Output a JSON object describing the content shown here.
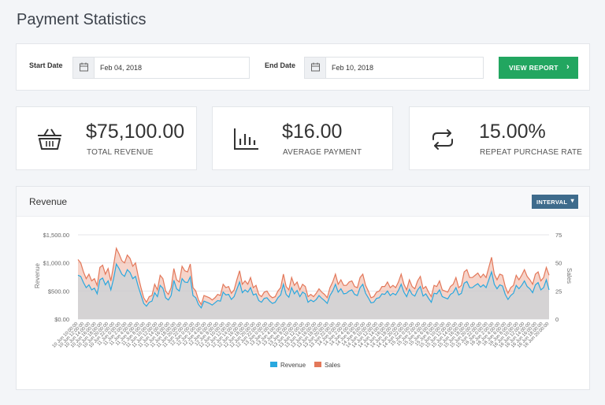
{
  "page": {
    "title": "Payment Statistics"
  },
  "filter": {
    "start_label": "Start Date",
    "start_value": "Feb 04, 2018",
    "end_label": "End Date",
    "end_value": "Feb 10, 2018",
    "button_label": "VIEW REPORT",
    "button_icon": "chevron-right-icon",
    "button_color": "#22a660"
  },
  "stats": [
    {
      "value": "$75,100.00",
      "label": "TOTAL REVENUE",
      "icon": "basket-icon"
    },
    {
      "value": "$16.00",
      "label": "AVERAGE PAYMENT",
      "icon": "bar-chart-icon"
    },
    {
      "value": "15.00%",
      "label": "REPEAT PURCHASE RATE",
      "icon": "repeat-icon"
    }
  ],
  "revenue_panel": {
    "title": "Revenue",
    "interval_label": "INTERVAL",
    "interval_color": "#3e6b8c"
  },
  "chart_data": {
    "type": "area",
    "ylabel": "Revenue",
    "y2label": "Sales",
    "y_ticks": [
      "$0.00",
      "$500.00",
      "$1,000.00",
      "$1,500.00"
    ],
    "y2_ticks": [
      "0",
      "25",
      "50",
      "75"
    ],
    "ylim": [
      0,
      1500
    ],
    "y2lim": [
      0,
      75
    ],
    "grid": true,
    "legend": "bottom",
    "x_ticks": [
      "10 Jun 10:00:00",
      "10 Jun 12:00:00",
      "10 Jun 14:00:00",
      "10 Jun 16:00:00",
      "10 Jun 18:00:00",
      "10 Jun 20:00:00",
      "10 Jun 22:00:00",
      "11 Jun 0:00:00",
      "11 Jun 2:00:00",
      "11 Jun 4:00:00",
      "11 Jun 6:00:00",
      "11 Jun 8:00:00",
      "11 Jun 10:00:00",
      "11 Jun 12:00:00",
      "11 Jun 14:00:00",
      "11 Jun 16:00:00",
      "11 Jun 18:00:00",
      "11 Jun 20:00:00",
      "11 Jun 22:00:00",
      "12 Jun 0:00:00",
      "12 Jun 2:00:00",
      "12 Jun 4:00:00",
      "12 Jun 6:00:00",
      "12 Jun 8:00:00",
      "12 Jun 10:00:00",
      "12 Jun 12:00:00",
      "12 Jun 14:00:00",
      "12 Jun 16:00:00",
      "12 Jun 18:00:00",
      "12 Jun 20:00:00",
      "12 Jun 22:00:00",
      "13 Jun 0:00:00",
      "13 Jun 2:00:00",
      "13 Jun 4:00:00",
      "13 Jun 6:00:00",
      "13 Jun 8:00:00",
      "13 Jun 10:00:00",
      "13 Jun 12:00:00",
      "13 Jun 14:00:00",
      "13 Jun 16:00:00",
      "13 Jun 18:00:00",
      "13 Jun 20:00:00",
      "13 Jun 22:00:00",
      "14 Jun 0:00:00",
      "14 Jun 2:00:00",
      "14 Jun 4:00:00",
      "14 Jun 6:00:00",
      "14 Jun 8:00:00",
      "14 Jun 10:00:00",
      "14 Jun 12:00:00",
      "14 Jun 14:00:00",
      "14 Jun 16:00:00",
      "14 Jun 18:00:00",
      "14 Jun 20:00:00",
      "14 Jun 22:00:00",
      "15 Jun 0:00:00",
      "15 Jun 2:00:00",
      "15 Jun 4:00:00",
      "15 Jun 6:00:00",
      "15 Jun 8:00:00",
      "15 Jun 10:00:00",
      "15 Jun 12:00:00",
      "15 Jun 14:00:00",
      "15 Jun 16:00:00",
      "15 Jun 18:00:00",
      "15 Jun 20:00:00",
      "15 Jun 22:00:00",
      "16 Jun 0:00:00",
      "16 Jun 2:00:00",
      "16 Jun 4:00:00",
      "16 Jun 6:00:00",
      "16 Jun 8:00:00",
      "16 Jun 10:00:00",
      "16 Jun 12:00:00",
      "16 Jun 14:00:00",
      "16 Jun 16:00:00",
      "16 Jun 18:00:00",
      "16 Jun 20:00:00"
    ],
    "series": [
      {
        "name": "Revenue",
        "color": "#29a8df",
        "values": [
          780,
          760,
          650,
          560,
          610,
          520,
          550,
          450,
          700,
          730,
          610,
          680,
          520,
          720,
          980,
          900,
          800,
          760,
          880,
          830,
          720,
          760,
          580,
          430,
          280,
          230,
          300,
          320,
          470,
          400,
          600,
          550,
          380,
          340,
          420,
          690,
          540,
          500,
          720,
          660,
          650,
          750,
          420,
          380,
          260,
          200,
          320,
          300,
          280,
          250,
          290,
          330,
          320,
          480,
          430,
          440,
          350,
          400,
          530,
          660,
          470,
          520,
          480,
          560,
          430,
          450,
          330,
          300,
          370,
          380,
          320,
          280,
          300,
          380,
          430,
          620,
          440,
          390,
          560,
          450,
          510,
          400,
          480,
          450,
          300,
          340,
          310,
          350,
          420,
          370,
          330,
          280,
          420,
          500,
          620,
          480,
          540,
          450,
          460,
          500,
          520,
          440,
          420,
          560,
          620,
          460,
          380,
          290,
          300,
          370,
          380,
          450,
          440,
          500,
          420,
          460,
          430,
          510,
          620,
          480,
          400,
          530,
          440,
          410,
          520,
          580,
          410,
          450,
          370,
          300,
          460,
          450,
          520,
          400,
          380,
          360,
          440,
          470,
          560,
          430,
          460,
          640,
          670,
          560,
          560,
          600,
          630,
          570,
          610,
          560,
          700,
          840,
          620,
          540,
          610,
          590,
          440,
          350,
          420,
          460,
          600,
          540,
          600,
          680,
          580,
          540,
          470,
          610,
          650,
          520,
          560,
          700,
          520
        ]
      },
      {
        "name": "Sales",
        "color": "#e3785a",
        "values": [
          53,
          50,
          42,
          36,
          40,
          34,
          36,
          30,
          46,
          48,
          40,
          45,
          34,
          48,
          63,
          58,
          52,
          50,
          57,
          54,
          47,
          50,
          38,
          28,
          19,
          15,
          20,
          21,
          31,
          26,
          39,
          36,
          25,
          22,
          28,
          45,
          35,
          33,
          47,
          43,
          42,
          49,
          28,
          25,
          17,
          13,
          21,
          20,
          19,
          17,
          19,
          22,
          21,
          31,
          28,
          29,
          23,
          26,
          35,
          43,
          31,
          34,
          31,
          37,
          28,
          30,
          22,
          20,
          24,
          25,
          21,
          19,
          20,
          25,
          28,
          40,
          29,
          26,
          37,
          30,
          33,
          26,
          31,
          29,
          20,
          22,
          20,
          23,
          27,
          24,
          22,
          19,
          28,
          33,
          40,
          31,
          35,
          30,
          30,
          33,
          34,
          29,
          28,
          37,
          40,
          30,
          25,
          19,
          20,
          24,
          25,
          29,
          29,
          33,
          28,
          30,
          28,
          33,
          40,
          31,
          26,
          35,
          29,
          27,
          34,
          38,
          27,
          29,
          24,
          20,
          30,
          29,
          34,
          26,
          25,
          24,
          29,
          31,
          37,
          28,
          30,
          42,
          44,
          37,
          37,
          39,
          41,
          37,
          40,
          37,
          46,
          55,
          40,
          35,
          40,
          39,
          29,
          23,
          28,
          30,
          39,
          35,
          39,
          44,
          38,
          35,
          31,
          40,
          42,
          34,
          37,
          46,
          39
        ]
      }
    ]
  }
}
